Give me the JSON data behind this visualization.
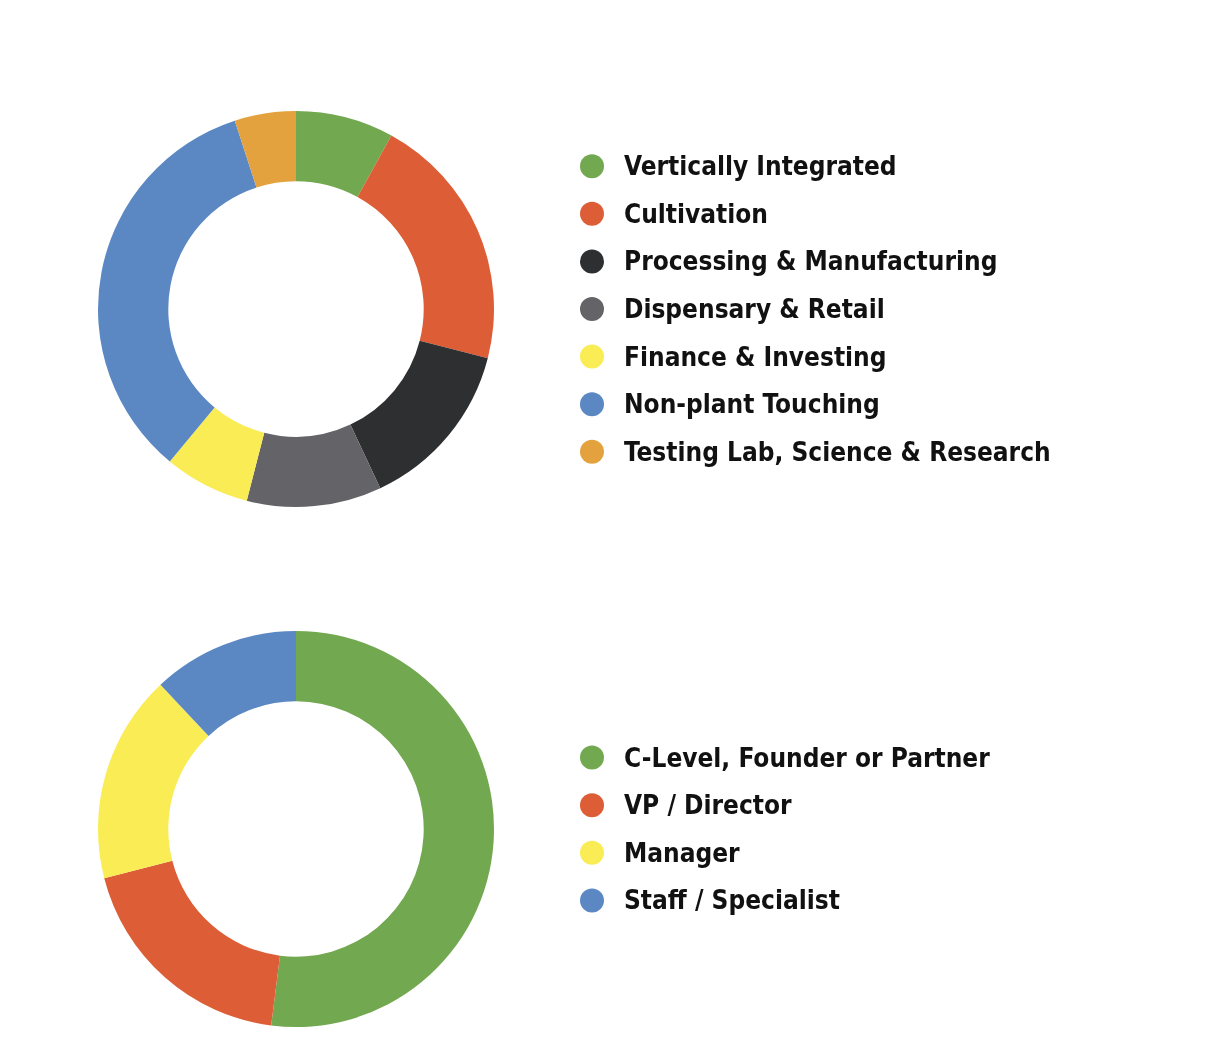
{
  "chart_data": [
    {
      "type": "donut",
      "categories": [
        "Vertically Integrated",
        "Cultivation",
        "Processing & Manufacturing",
        "Dispensary & Retail",
        "Finance & Investing",
        "Non-plant Touching",
        "Testing Lab, Science & Research"
      ],
      "values": [
        8,
        21,
        14,
        11,
        7,
        34,
        5
      ],
      "colors": [
        "#72a84f",
        "#dd5e36",
        "#2e2f31",
        "#646468",
        "#f9ec55",
        "#5b88c3",
        "#e3a23e"
      ],
      "legend": "right"
    },
    {
      "type": "donut",
      "categories": [
        "C-Level, Founder or Partner",
        "VP / Director",
        "Manager",
        "Staff / Specialist"
      ],
      "values": [
        52,
        19,
        17,
        12
      ],
      "colors": [
        "#72a84f",
        "#dd5e36",
        "#f9ec55",
        "#5b88c3"
      ],
      "legend": "right"
    }
  ]
}
